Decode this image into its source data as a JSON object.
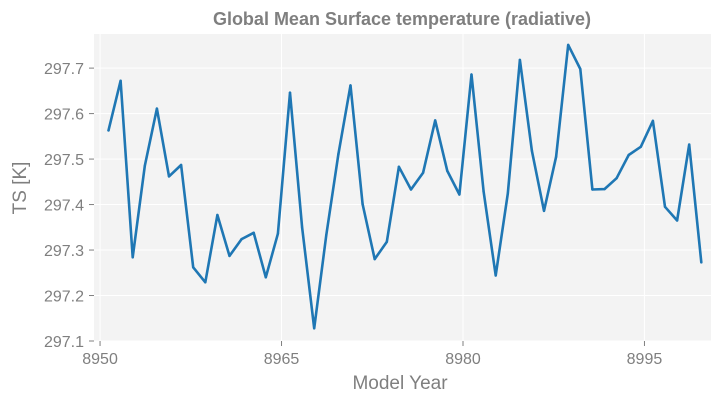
{
  "chart_data": {
    "type": "line",
    "title": "Global Mean Surface temperature (radiative)",
    "xlabel": "Model Year",
    "ylabel": "TS [K]",
    "xlim": [
      8949.5,
      9000.5
    ],
    "ylim": [
      297.1,
      297.775
    ],
    "xticks": [
      8950,
      8965,
      8980,
      8995
    ],
    "yticks": [
      297.1,
      297.2,
      297.3,
      297.4,
      297.5,
      297.6,
      297.7
    ],
    "grid": true,
    "colors": {
      "line": "#1f77b4",
      "panel": "#f3f3f3",
      "grid": "#ffffff",
      "text": "#7f7f7f"
    },
    "series": [
      {
        "name": "TS",
        "x": [
          8950.7,
          8951.7,
          8952.7,
          8953.7,
          8954.7,
          8955.7,
          8956.7,
          8957.7,
          8958.7,
          8959.7,
          8960.7,
          8961.7,
          8962.7,
          8963.7,
          8964.7,
          8965.7,
          8966.7,
          8967.7,
          8968.7,
          8969.7,
          8970.7,
          8971.7,
          8972.7,
          8973.7,
          8974.7,
          8975.7,
          8976.7,
          8977.7,
          8978.7,
          8979.7,
          8980.7,
          8981.7,
          8982.7,
          8983.7,
          8984.7,
          8985.7,
          8986.7,
          8987.7,
          8988.7,
          8989.7,
          8990.7,
          8991.7,
          8992.7,
          8993.7,
          8994.7,
          8995.7,
          8996.7,
          8997.7,
          8998.7,
          8999.7
        ],
        "values": [
          297.563,
          297.672,
          297.284,
          297.485,
          297.611,
          297.462,
          297.487,
          297.262,
          297.229,
          297.377,
          297.287,
          297.324,
          297.338,
          297.24,
          297.336,
          297.646,
          297.35,
          297.128,
          297.333,
          297.511,
          297.662,
          297.401,
          297.28,
          297.318,
          297.483,
          297.433,
          297.47,
          297.585,
          297.474,
          297.422,
          297.686,
          297.429,
          297.244,
          297.424,
          297.718,
          297.518,
          297.386,
          297.505,
          297.751,
          297.698,
          297.433,
          297.434,
          297.458,
          297.509,
          297.527,
          297.584,
          297.395,
          297.365,
          297.532,
          297.273
        ]
      }
    ]
  }
}
